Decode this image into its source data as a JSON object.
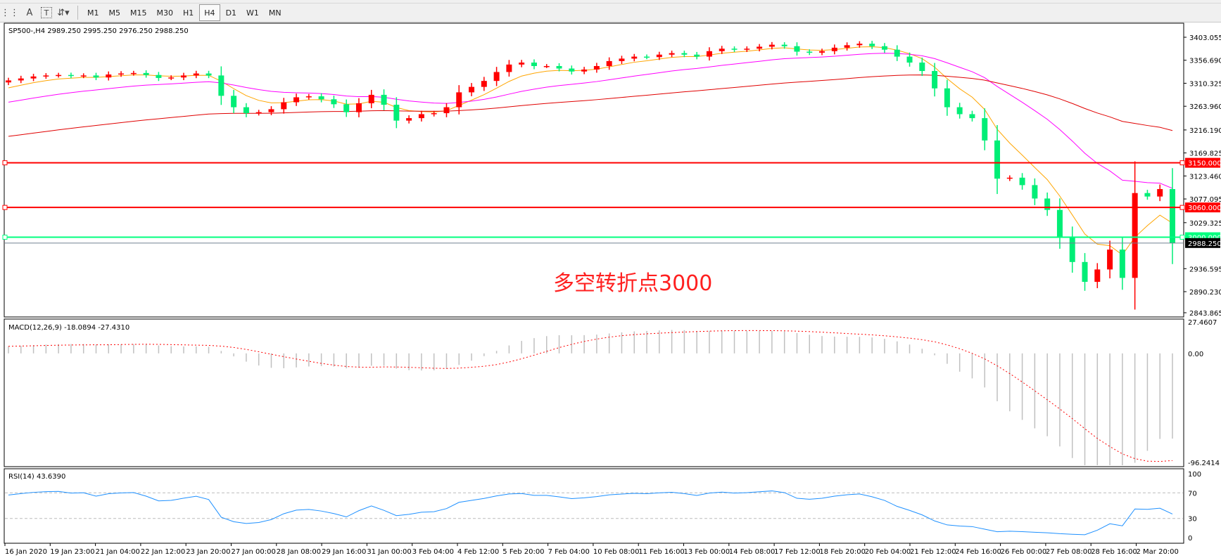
{
  "toolbar": {
    "icons": [
      "grid-icon",
      "text-icon",
      "text-label-icon",
      "arrows-icon"
    ],
    "timeframes": [
      "M1",
      "M5",
      "M15",
      "M30",
      "H1",
      "H4",
      "D1",
      "W1",
      "MN"
    ],
    "active_timeframe": "H4"
  },
  "chart_data": {
    "type": "candlestick",
    "title": "SP500-,H4  2989.250 2995.250 2976.250 2988.250",
    "closes": [
      3316,
      3320,
      3324,
      3326,
      3327,
      3325,
      3326,
      3322,
      3328,
      3330,
      3331,
      3327,
      3321,
      3322,
      3326,
      3330,
      3326,
      3285,
      3262,
      3250,
      3252,
      3258,
      3272,
      3282,
      3284,
      3278,
      3268,
      3252,
      3270,
      3287,
      3267,
      3235,
      3240,
      3248,
      3250,
      3262,
      3292,
      3303,
      3315,
      3333,
      3348,
      3352,
      3345,
      3345,
      3340,
      3334,
      3338,
      3345,
      3355,
      3360,
      3364,
      3363,
      3368,
      3371,
      3368,
      3364,
      3375,
      3380,
      3378,
      3380,
      3384,
      3388,
      3385,
      3374,
      3372,
      3375,
      3382,
      3387,
      3390,
      3385,
      3378,
      3364,
      3352,
      3335,
      3300,
      3262,
      3248,
      3240,
      3195,
      3118,
      3120,
      3105,
      3078,
      3055,
      3000,
      2950,
      2910,
      2935,
      2975,
      2918,
      3089,
      3082,
      3097,
      2988
    ],
    "up_color": "#ff0000",
    "down_color": "#00ee76",
    "price_ticks": [
      "3403.055",
      "3356.690",
      "3310.325",
      "3263.960",
      "3216.190",
      "3169.825",
      "3123.460",
      "3077.095",
      "3029.325",
      "2936.595",
      "2890.230",
      "2843.865"
    ],
    "ylim": [
      2843.865,
      3403.055
    ],
    "moving_averages": [
      {
        "color": "#ffa500"
      },
      {
        "color": "#ff00ff"
      },
      {
        "color": "#e00000"
      }
    ],
    "levels": [
      {
        "value": 3150,
        "label": "3150.000",
        "color": "#ff0000"
      },
      {
        "value": 3060,
        "label": "3060.000",
        "color": "#ff0000"
      },
      {
        "value": 3000,
        "label": "3000.000",
        "color": "#00ff7f"
      },
      {
        "value": 2988.25,
        "label": "2988.250",
        "color": "#000000"
      }
    ],
    "annotation": "多空转折点3000",
    "x_ticks": [
      "16 Jan 2020",
      "19 Jan 23:00",
      "21 Jan 04:00",
      "22 Jan 12:00",
      "23 Jan 20:00",
      "27 Jan 00:00",
      "28 Jan 08:00",
      "29 Jan 16:00",
      "31 Jan 00:00",
      "3 Feb 04:00",
      "4 Feb 12:00",
      "5 Feb 20:00",
      "7 Feb 04:00",
      "10 Feb 08:00",
      "11 Feb 16:00",
      "13 Feb 00:00",
      "14 Feb 08:00",
      "17 Feb 12:00",
      "18 Feb 20:00",
      "20 Feb 04:00",
      "21 Feb 12:00",
      "24 Feb 16:00",
      "26 Feb 00:00",
      "27 Feb 08:00",
      "28 Feb 16:00",
      "2 Mar 20:00"
    ],
    "macd": {
      "label": "MACD(12,26,9) -18.0894 -27.4310",
      "ticks": [
        "27.4607",
        "0.00",
        "-96.2414"
      ],
      "ylim": [
        -96.2414,
        27.4607
      ],
      "histogram_color": "#c0c0c0",
      "signal_color": "#ff0000"
    },
    "rsi": {
      "label": "RSI(14) 43.6390",
      "ticks": [
        "100",
        "70",
        "30",
        "0"
      ],
      "levels": [
        70,
        30
      ],
      "ylim": [
        0,
        100
      ],
      "color": "#1e90ff"
    }
  }
}
